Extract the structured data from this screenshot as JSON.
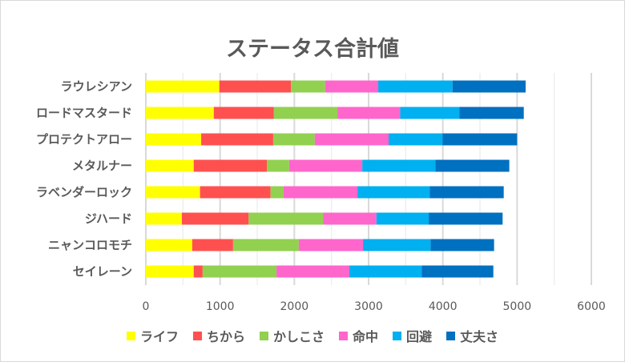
{
  "chart_data": {
    "type": "bar",
    "orientation": "horizontal",
    "stacked": true,
    "title": "ステータス合計値",
    "categories": [
      "ラウレシアン",
      "ロードマスタード",
      "プロテクトアロー",
      "メタルナー",
      "ラベンダーロック",
      "ジハード",
      "ニャンコロモチ",
      "セイレーン"
    ],
    "series": [
      {
        "name": "ライフ",
        "color": "#FFFF00",
        "values": [
          990,
          915,
          745,
          645,
          730,
          485,
          625,
          645
        ]
      },
      {
        "name": "ちから",
        "color": "#FF5050",
        "values": [
          965,
          810,
          970,
          985,
          950,
          900,
          550,
          120
        ]
      },
      {
        "name": "かしこさ",
        "color": "#92D050",
        "values": [
          460,
          855,
          560,
          300,
          175,
          1005,
          885,
          995
        ]
      },
      {
        "name": "命中",
        "color": "#FF66CC",
        "values": [
          715,
          845,
          995,
          985,
          995,
          715,
          865,
          980
        ]
      },
      {
        "name": "回避",
        "color": "#00B0F0",
        "values": [
          1000,
          800,
          725,
          985,
          975,
          705,
          910,
          975
        ]
      },
      {
        "name": "丈夫さ",
        "color": "#0070C0",
        "values": [
          985,
          865,
          1005,
          995,
          995,
          995,
          855,
          965
        ]
      }
    ],
    "xlim": [
      0,
      6000
    ],
    "xticks": [
      "0",
      "1000",
      "2000",
      "3000",
      "4000",
      "5000",
      "6000"
    ],
    "grid": true,
    "legend": "bottom"
  }
}
